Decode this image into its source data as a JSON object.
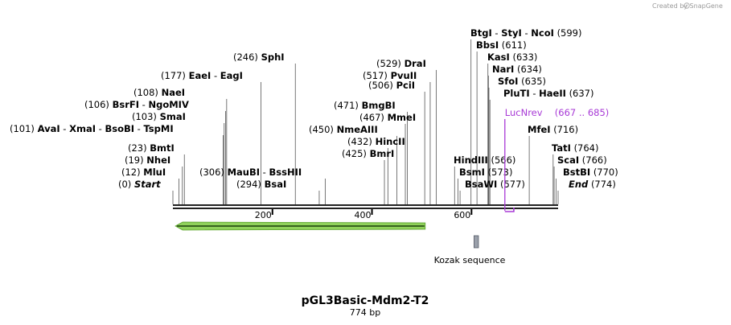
{
  "credit": "Created by SnapGene",
  "map": {
    "name": "pGL3Basic-Mdm2-T2",
    "size_label": "774 bp",
    "length_bp": 774,
    "ticks": [
      {
        "pos": 200,
        "label": "200"
      },
      {
        "pos": 400,
        "label": "400"
      },
      {
        "pos": 600,
        "label": "600"
      }
    ],
    "site_groups": [
      {
        "anchor": 0,
        "items": [
          {
            "num": "(0)",
            "name": "Start",
            "italic": true
          }
        ]
      },
      {
        "anchor": 12,
        "items": [
          {
            "num": "(12)",
            "name": "MluI"
          }
        ]
      },
      {
        "anchor": 19,
        "items": [
          {
            "num": "(19)",
            "name": "NheI"
          }
        ]
      },
      {
        "anchor": 23,
        "items": [
          {
            "num": "(23)",
            "name": "BmtI"
          }
        ]
      },
      {
        "anchor": 101,
        "items": [
          {
            "num": "(101)",
            "name": "AvaI"
          },
          {
            "name": "XmaI"
          },
          {
            "name": "BsoBI"
          },
          {
            "name": "TspMI"
          }
        ]
      },
      {
        "anchor": 103,
        "items": [
          {
            "num": "(103)",
            "name": "SmaI"
          }
        ]
      },
      {
        "anchor": 106,
        "items": [
          {
            "num": "(106)",
            "name": "BsrFI"
          },
          {
            "name": "NgoMIV"
          }
        ]
      },
      {
        "anchor": 108,
        "items": [
          {
            "num": "(108)",
            "name": "NaeI"
          }
        ]
      },
      {
        "anchor": 177,
        "items": [
          {
            "num": "(177)",
            "name": "EaeI"
          },
          {
            "name": "EagI"
          }
        ]
      },
      {
        "anchor": 246,
        "items": [
          {
            "num": "(246)",
            "name": "SphI"
          }
        ]
      },
      {
        "anchor": 294,
        "items": [
          {
            "num": "(294)",
            "name": "BsaI"
          }
        ]
      },
      {
        "anchor": 306,
        "items": [
          {
            "num": "(306)",
            "name": "MauBI"
          },
          {
            "name": "BssHII"
          }
        ]
      },
      {
        "anchor": 425,
        "items": [
          {
            "num": "(425)",
            "name": "BmrI"
          }
        ]
      },
      {
        "anchor": 432,
        "items": [
          {
            "num": "(432)",
            "name": "HincII"
          }
        ]
      },
      {
        "anchor": 450,
        "items": [
          {
            "num": "(450)",
            "name": "NmeAIII"
          }
        ]
      },
      {
        "anchor": 467,
        "items": [
          {
            "num": "(467)",
            "name": "MmeI"
          }
        ]
      },
      {
        "anchor": 471,
        "items": [
          {
            "num": "(471)",
            "name": "BmgBI"
          }
        ]
      },
      {
        "anchor": 506,
        "items": [
          {
            "num": "(506)",
            "name": "PciI"
          }
        ]
      },
      {
        "anchor": 517,
        "items": [
          {
            "num": "(517)",
            "name": "PvuII"
          }
        ]
      },
      {
        "anchor": 529,
        "items": [
          {
            "num": "(529)",
            "name": "DraI"
          }
        ]
      },
      {
        "anchor": 566,
        "items": [
          {
            "name": "HindIII",
            "num_after": "(566)"
          }
        ]
      },
      {
        "anchor": 573,
        "items": [
          {
            "name": "BsmI",
            "num_after": "(573)"
          }
        ]
      },
      {
        "anchor": 577,
        "items": [
          {
            "name": "BsaWI",
            "num_after": "(577)"
          }
        ]
      },
      {
        "anchor": 599,
        "items": [
          {
            "name": "BtgI"
          },
          {
            "name": "StyI"
          },
          {
            "name": "NcoI",
            "num_after": "(599)"
          }
        ]
      },
      {
        "anchor": 611,
        "items": [
          {
            "name": "BbsI",
            "num_after": "(611)"
          }
        ]
      },
      {
        "anchor": 633,
        "items": [
          {
            "name": "KasI",
            "num_after": "(633)"
          }
        ]
      },
      {
        "anchor": 634,
        "items": [
          {
            "name": "NarI",
            "num_after": "(634)"
          }
        ]
      },
      {
        "anchor": 635,
        "items": [
          {
            "name": "SfoI",
            "num_after": "(635)"
          }
        ]
      },
      {
        "anchor": 637,
        "items": [
          {
            "name": "PluTI"
          },
          {
            "name": "HaeII",
            "num_after": "(637)"
          }
        ]
      },
      {
        "anchor": 716,
        "items": [
          {
            "name": "MfeI",
            "num_after": "(716)"
          }
        ]
      },
      {
        "anchor": 764,
        "items": [
          {
            "name": "TatI",
            "num_after": "(764)"
          }
        ]
      },
      {
        "anchor": 766,
        "items": [
          {
            "name": "ScaI",
            "num_after": "(766)"
          }
        ]
      },
      {
        "anchor": 770,
        "items": [
          {
            "name": "BstBI",
            "num_after": "(770)"
          }
        ]
      },
      {
        "anchor": 774,
        "items": [
          {
            "name": "End",
            "italic": true,
            "num_after": "(774)"
          }
        ]
      }
    ],
    "primer": {
      "name": "LucNrev",
      "range": "(667 .. 685)",
      "start": 667,
      "end": 685,
      "color": "#a83ad6"
    },
    "feature_arrow": {
      "start": 5,
      "end": 507,
      "direction": "reverse",
      "color": "#8fd15a"
    },
    "misc_feature": {
      "name": "Kozak sequence",
      "start": 605,
      "end": 614,
      "color": "#9aa0aa"
    }
  }
}
